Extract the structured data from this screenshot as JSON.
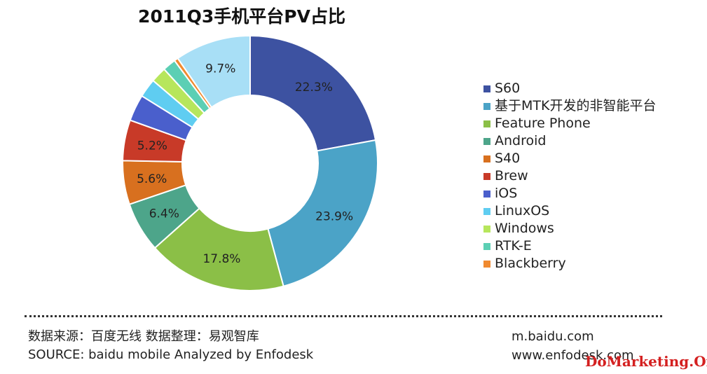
{
  "chart_data": {
    "type": "pie",
    "subtype": "donut",
    "title": "2011Q3手机平台PV占比",
    "legend_position": "right",
    "slices": [
      {
        "label": "S60",
        "value": 22.3,
        "display": "22.3%",
        "color": "#3d52a1"
      },
      {
        "label": "基于MTK开发的非智能平台",
        "value": 23.9,
        "display": "23.9%",
        "color": "#4ba3c7"
      },
      {
        "label": "Feature Phone",
        "value": 17.8,
        "display": "17.8%",
        "color": "#8bbf47"
      },
      {
        "label": "Android",
        "value": 6.4,
        "display": "6.4%",
        "color": "#4da58a"
      },
      {
        "label": "S40",
        "value": 5.6,
        "display": "5.6%",
        "color": "#d8701f"
      },
      {
        "label": "Brew",
        "value": 5.2,
        "display": "5.2%",
        "color": "#c83a28"
      },
      {
        "label": "iOS",
        "value": 3.4,
        "display": "",
        "color": "#4a5fcc"
      },
      {
        "label": "LinuxOS",
        "value": 2.4,
        "display": "",
        "color": "#5fcdf1"
      },
      {
        "label": "Windows",
        "value": 2.0,
        "display": "",
        "color": "#b7e65c"
      },
      {
        "label": "RTK-E",
        "value": 1.7,
        "display": "",
        "color": "#5ccfb4"
      },
      {
        "label": "Blackberry",
        "value": 0.5,
        "display": "",
        "color": "#f08a30"
      },
      {
        "label": "",
        "value": 9.7,
        "display": "9.7%",
        "color": "#a8dff6"
      }
    ]
  },
  "footer": {
    "source_cn": "数据来源：百度无线   数据整理：易观智库",
    "source_en": "SOURCE: baidu mobile Analyzed by Enfodesk",
    "site1": "m.baidu.com",
    "site2": "www.enfodesk.com"
  },
  "watermark": "DoMarketing.Org"
}
